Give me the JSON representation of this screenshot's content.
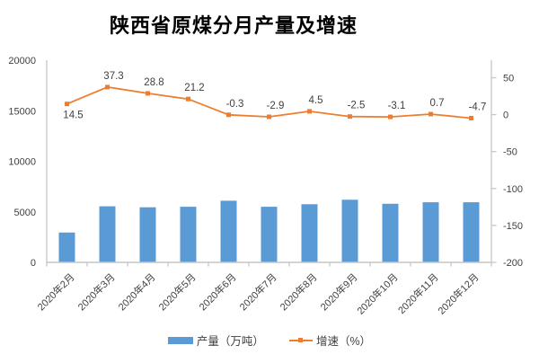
{
  "chart_data": {
    "type": "bar+line combo",
    "title": "陕西省原煤分月产量及增速",
    "categories": [
      "2020年2月",
      "2020年3月",
      "2020年4月",
      "2020年5月",
      "2020年6月",
      "2020年7月",
      "2020年8月",
      "2020年9月",
      "2020年10月",
      "2020年11月",
      "2020年12月"
    ],
    "series": [
      {
        "name": "产量（万吨）",
        "type": "bar",
        "y_axis": "left",
        "color": "#5B9BD5",
        "values": [
          2950,
          5550,
          5450,
          5500,
          6100,
          5500,
          5750,
          6200,
          5800,
          5950,
          5950
        ],
        "data_labels": false
      },
      {
        "name": "增速（%）",
        "type": "line",
        "y_axis": "right",
        "color": "#ED7D31",
        "marker": "square",
        "values": [
          14.5,
          37.3,
          28.8,
          21.2,
          -0.3,
          -2.9,
          4.5,
          -2.5,
          -3.1,
          0.7,
          -4.7
        ],
        "data_labels": true
      }
    ],
    "left_axis": {
      "min": 0,
      "max": 20000,
      "ticks": [
        0,
        5000,
        10000,
        15000,
        20000
      ]
    },
    "right_axis": {
      "ticks": [
        50,
        0,
        -50,
        -100,
        -150,
        -200
      ]
    },
    "legend_position": "bottom",
    "grid": false,
    "colors": {
      "bar": "#5B9BD5",
      "line": "#ED7D31",
      "axis_line": "#C6C6C6",
      "tick_text": "#404040",
      "title_text": "#000000"
    }
  }
}
